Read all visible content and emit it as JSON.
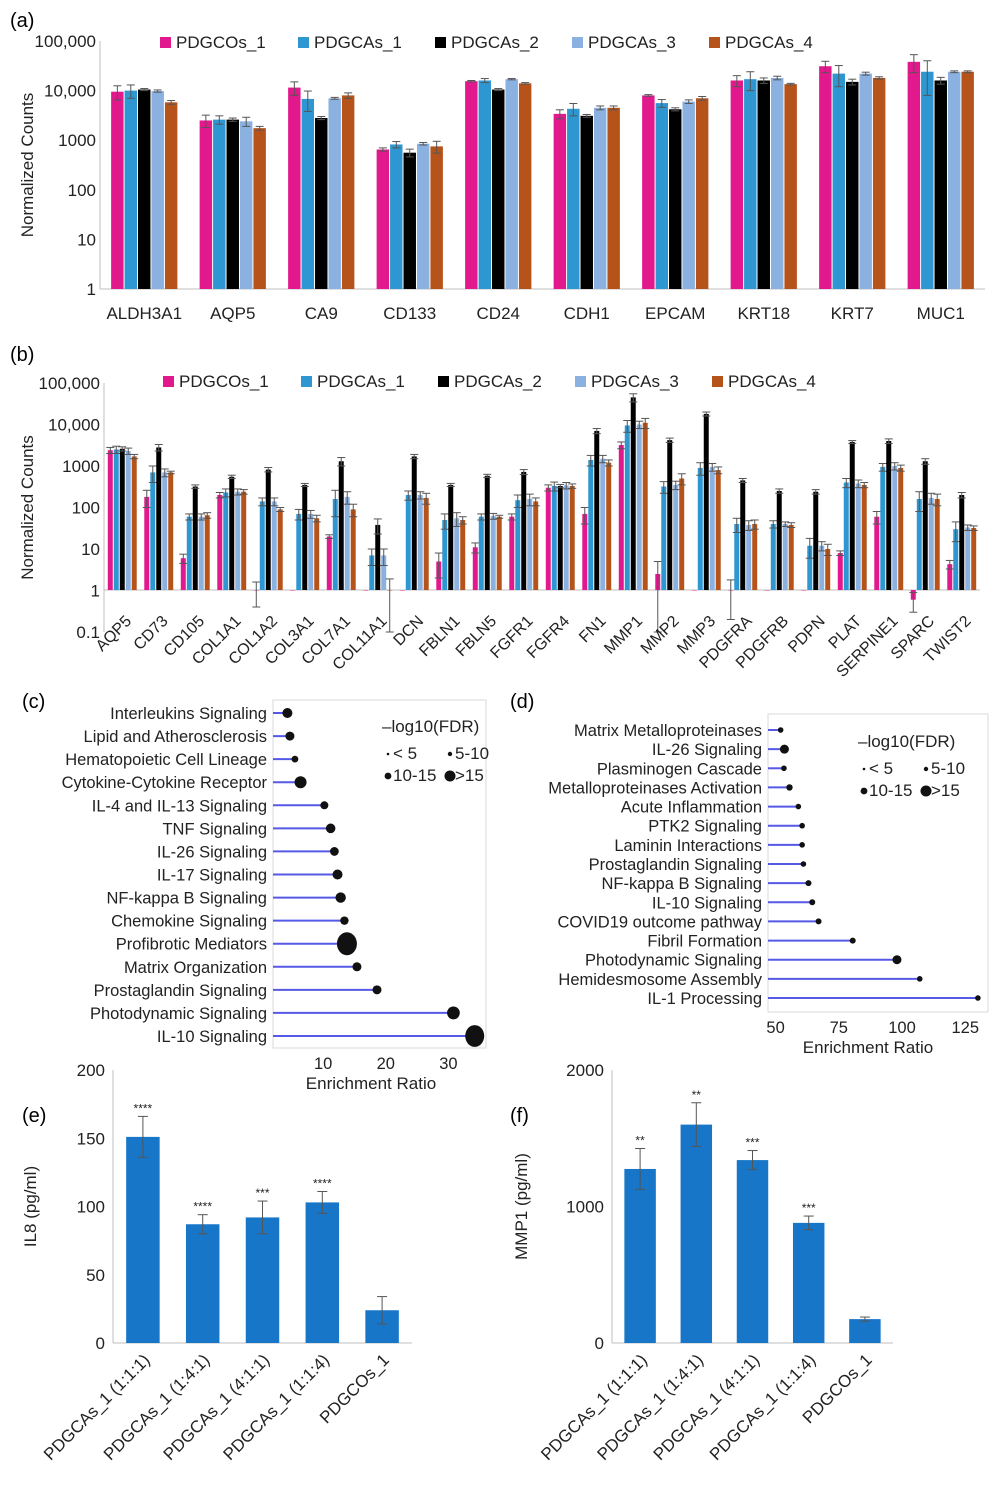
{
  "colors": {
    "PDGCOs_1": "#E2198C",
    "PDGCAs_1": "#2E97D2",
    "PDGCAs_2": "#000000",
    "PDGCAs_3": "#8BB1E1",
    "PDGCAs_4": "#B5531A",
    "lollipop_line": "#5559E6",
    "bar_blue": "#1776C8"
  },
  "chart_data": [
    {
      "panel": "(a)",
      "type": "bar",
      "scale": "log",
      "ylabel": "Normalized Counts",
      "yticks": [
        "100,000",
        "10,000",
        "1000",
        "100",
        "10",
        "1"
      ],
      "ylim": [
        1,
        100000
      ],
      "categories": [
        "ALDH3A1",
        "AQP5",
        "CA9",
        "CD133",
        "CD24",
        "CDH1",
        "EPCAM",
        "KRT18",
        "KRT7",
        "MUC1"
      ],
      "series": [
        {
          "name": "PDGCOs_1",
          "values": [
            9500,
            2500,
            11500,
            650,
            15500,
            3400,
            8000,
            16000,
            31000,
            38000
          ],
          "errors": [
            3000,
            700,
            3500,
            50,
            500,
            700,
            300,
            4000,
            8000,
            15000
          ]
        },
        {
          "name": "PDGCAs_1",
          "values": [
            10000,
            2600,
            6800,
            820,
            16000,
            4300,
            5600,
            17000,
            22000,
            24000
          ],
          "errors": [
            3000,
            500,
            3000,
            120,
            1500,
            1200,
            1000,
            7000,
            10000,
            16000
          ]
        },
        {
          "name": "PDGCAs_2",
          "values": [
            10500,
            2600,
            2800,
            560,
            10500,
            3100,
            4200,
            16000,
            15000,
            16000
          ],
          "errors": [
            500,
            200,
            200,
            100,
            500,
            200,
            300,
            2000,
            2000,
            2500
          ]
        },
        {
          "name": "PDGCAs_3",
          "values": [
            9800,
            2400,
            7000,
            850,
            17000,
            4500,
            6000,
            18000,
            22000,
            24000
          ],
          "errors": [
            500,
            500,
            300,
            50,
            500,
            400,
            500,
            1500,
            1500,
            1000
          ]
        },
        {
          "name": "PDGCAs_4",
          "values": [
            5800,
            1750,
            8000,
            750,
            14000,
            4500,
            7000,
            13500,
            18000,
            24000
          ],
          "errors": [
            500,
            150,
            1000,
            200,
            500,
            400,
            600,
            500,
            1000,
            1000
          ]
        }
      ]
    },
    {
      "panel": "(b)",
      "type": "bar",
      "scale": "log",
      "ylabel": "Normalized Counts",
      "yticks": [
        "100,000",
        "10,000",
        "1000",
        "100",
        "10",
        "1",
        "0.1"
      ],
      "ylim": [
        0.1,
        100000
      ],
      "categories": [
        "AQP5",
        "CD73",
        "CD105",
        "COL1A1",
        "COL1A2",
        "COL3A1",
        "COL7A1",
        "COL11A1",
        "DCN",
        "FBLN1",
        "FBLN5",
        "FGFR1",
        "FGFR4",
        "FN1",
        "MMP1",
        "MMP2",
        "MMP3",
        "PDGFRA",
        "PDGFRB",
        "PDPN",
        "PLAT",
        "SERPINE1",
        "SPARC",
        "TWIST2"
      ],
      "series": [
        {
          "name": "PDGCOs_1",
          "values": [
            2400,
            180,
            6,
            200,
            1,
            1,
            20,
            1,
            1,
            5,
            11,
            60,
            300,
            70,
            3200,
            2.5,
            1,
            1,
            1,
            1,
            8,
            60,
            0.6,
            4.3
          ],
          "errors": [
            400,
            80,
            1.5,
            30,
            0.6,
            0,
            2,
            0,
            0,
            3,
            3,
            10,
            50,
            30,
            600,
            2.5,
            0,
            0.8,
            0,
            0,
            1,
            20,
            0.3,
            1
          ]
        },
        {
          "name": "PDGCAs_1",
          "values": [
            2500,
            700,
            60,
            230,
            140,
            70,
            160,
            7,
            200,
            50,
            60,
            150,
            330,
            1400,
            9500,
            320,
            900,
            40,
            40,
            12,
            400,
            950,
            160,
            30
          ],
          "errors": [
            500,
            300,
            10,
            50,
            30,
            20,
            100,
            3,
            50,
            20,
            10,
            50,
            80,
            400,
            3000,
            100,
            300,
            15,
            8,
            6,
            100,
            200,
            80,
            15
          ]
        },
        {
          "name": "PDGCAs_2",
          "values": [
            2600,
            2800,
            320,
            550,
            820,
            350,
            1300,
            38,
            1700,
            350,
            580,
            720,
            330,
            7000,
            45000,
            4200,
            18000,
            450,
            250,
            240,
            3800,
            4000,
            1300,
            200
          ],
          "errors": [
            300,
            500,
            30,
            50,
            100,
            30,
            300,
            15,
            200,
            30,
            50,
            100,
            30,
            1000,
            10000,
            500,
            2000,
            50,
            30,
            30,
            300,
            500,
            200,
            30
          ]
        },
        {
          "name": "PDGCAs_3",
          "values": [
            2300,
            700,
            60,
            240,
            140,
            70,
            180,
            7,
            200,
            55,
            62,
            160,
            340,
            1500,
            10000,
            350,
            950,
            38,
            40,
            12,
            380,
            1000,
            170,
            33
          ],
          "errors": [
            400,
            150,
            10,
            40,
            30,
            15,
            60,
            3,
            40,
            20,
            10,
            50,
            60,
            300,
            2000,
            80,
            200,
            10,
            5,
            3,
            80,
            200,
            50,
            5
          ]
        },
        {
          "name": "PDGCAs_4",
          "values": [
            1700,
            700,
            65,
            240,
            90,
            55,
            90,
            1,
            170,
            50,
            60,
            140,
            330,
            1200,
            11000,
            500,
            800,
            40,
            38,
            10,
            350,
            900,
            160,
            32
          ],
          "errors": [
            200,
            50,
            10,
            30,
            10,
            10,
            30,
            0.9,
            50,
            10,
            5,
            30,
            40,
            200,
            3000,
            150,
            150,
            10,
            5,
            3,
            50,
            150,
            50,
            4
          ]
        }
      ]
    },
    {
      "panel": "(c)",
      "type": "lollipop",
      "xlabel": "Enrichment Ratio",
      "xticks": [
        10,
        20,
        30
      ],
      "xlim": [
        2,
        36
      ],
      "legend_title": "–log10(FDR)",
      "legend_labels": [
        "< 5",
        "5-10",
        "10-15",
        ">15"
      ],
      "pathways": [
        "Interleukins Signaling",
        "Lipid and Atherosclerosis",
        "Hematopoietic Cell Lineage",
        "Cytokine-Cytokine Receptor",
        "IL-4 and IL-13 Signaling",
        "TNF Signaling",
        "IL-26 Signaling",
        "IL-17 Signaling",
        "NF-kappa B Signaling",
        "Chemokine Signaling",
        "Profibrotic Mediators",
        "Matrix Organization",
        "Prostaglandin Signaling",
        "Photodynamic Signaling",
        "IL-10 Signaling"
      ],
      "ratios": [
        4.3,
        4.7,
        5.5,
        6.4,
        10.2,
        11.2,
        11.8,
        12.3,
        12.8,
        13.4,
        13.8,
        15.4,
        18.6,
        30.8,
        34.2
      ],
      "fdr_class": [
        2,
        2,
        1,
        3,
        2,
        2,
        2,
        2,
        2,
        2,
        4,
        2,
        2,
        3,
        4
      ]
    },
    {
      "panel": "(d)",
      "type": "lollipop",
      "xlabel": "Enrichment Ratio",
      "xticks": [
        50,
        75,
        100,
        125
      ],
      "xlim": [
        47,
        134
      ],
      "legend_title": "–log10(FDR)",
      "legend_labels": [
        "< 5",
        "5-10",
        "10-15",
        ">15"
      ],
      "pathways": [
        "Matrix Metalloproteinases",
        "IL-26 Signaling",
        "Plasminogen Cascade",
        "Metalloproteinases Activation",
        "Acute Inflammation",
        "PTK2 Signaling",
        "Laminin Interactions",
        "Prostaglandin Signaling",
        "NF-kappa B Signaling",
        "IL-10 Signaling",
        "COVID19 outcome pathway",
        "Fibril Formation",
        "Photodynamic Signaling",
        "Hemidesmosome Assembly",
        "IL-1 Processing"
      ],
      "ratios": [
        52,
        53.5,
        53.3,
        55.5,
        59,
        60.5,
        60.5,
        61,
        63,
        64.5,
        67,
        80.5,
        98,
        107,
        130
      ],
      "fdr_class": [
        1,
        2,
        1,
        1,
        1,
        1,
        1,
        1,
        1,
        1,
        1,
        1,
        2,
        1,
        1
      ]
    },
    {
      "panel": "(e)",
      "type": "bar",
      "ylabel": "IL8 (pg/ml)",
      "ylim": [
        0,
        200
      ],
      "yticks": [
        0,
        50,
        100,
        150,
        200
      ],
      "categories": [
        "PDGCAs_1 (1:1:1)",
        "PDGCAs_1 (1:4:1)",
        "PDGCAs_1 (4:1:1)",
        "PDGCAs_1 (1:1:4)",
        "PDGCOs_1"
      ],
      "values": [
        151,
        87,
        92,
        103,
        24
      ],
      "errors": [
        15,
        7,
        12,
        8,
        10
      ],
      "significance": [
        "****",
        "****",
        "***",
        "****",
        ""
      ]
    },
    {
      "panel": "(f)",
      "type": "bar",
      "ylabel": "MMP1 (pg/ml)",
      "ylim": [
        0,
        2000
      ],
      "yticks": [
        0,
        1000,
        2000
      ],
      "categories": [
        "PDGCAs_1 (1:1:1)",
        "PDGCAs_1 (1:4:1)",
        "PDGCAs_1 (4:1:1)",
        "PDGCAs_1 (1:1:4)",
        "PDGCOs_1"
      ],
      "values": [
        1275,
        1600,
        1340,
        880,
        175
      ],
      "errors": [
        150,
        160,
        70,
        50,
        15
      ],
      "significance": [
        "**",
        "**",
        "***",
        "***",
        ""
      ]
    }
  ]
}
